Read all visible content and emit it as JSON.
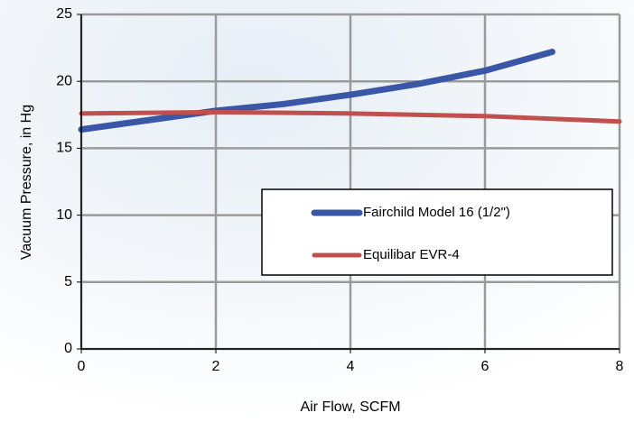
{
  "chart_data": {
    "type": "line",
    "xlabel": "Air Flow, SCFM",
    "ylabel": "Vacuum Pressure, in Hg",
    "series": [
      {
        "name": "Fairchild Model 16 (1/2\")",
        "color": "#3a57a7",
        "x": [
          0,
          1,
          2,
          3,
          4,
          5,
          6,
          7
        ],
        "values": [
          16.4,
          17.1,
          17.8,
          18.3,
          19.0,
          19.8,
          20.8,
          22.2
        ]
      },
      {
        "name": "Equilibar EVR-4",
        "color": "#c0504d",
        "x": [
          0,
          2,
          4,
          6,
          8
        ],
        "values": [
          17.6,
          17.7,
          17.6,
          17.4,
          17.0
        ]
      }
    ],
    "xlim": [
      0,
      8
    ],
    "xticks": [
      0,
      2,
      4,
      6,
      8
    ],
    "ylim": [
      0,
      25
    ],
    "yticks": [
      0,
      5,
      10,
      15,
      20,
      25
    ],
    "grid": true,
    "legend": "lower right"
  }
}
